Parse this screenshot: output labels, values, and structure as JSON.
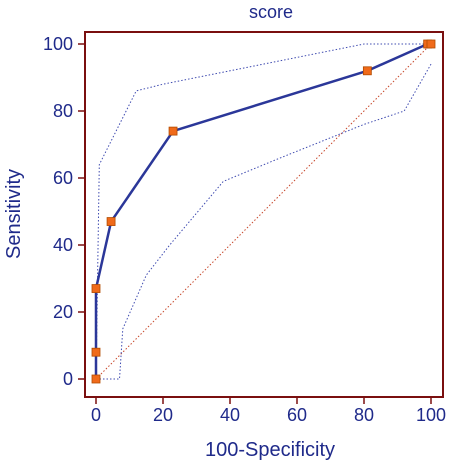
{
  "chart_data": {
    "type": "line",
    "title": "score",
    "xlabel": "100-Specificity",
    "ylabel": "Sensitivity",
    "xlim": [
      0,
      100
    ],
    "ylim": [
      0,
      100
    ],
    "x_ticks": [
      0,
      20,
      40,
      60,
      80,
      100
    ],
    "y_ticks": [
      0,
      20,
      40,
      60,
      80,
      100
    ],
    "x_tick_labels": [
      "0",
      "20",
      "40",
      "60",
      "80",
      "100"
    ],
    "y_tick_labels": [
      "0",
      "20",
      "40",
      "60",
      "80",
      "100"
    ],
    "grid": false,
    "series": [
      {
        "role": "roc-curve",
        "style": "solid",
        "markers": "square",
        "color": "#2b3799",
        "marker_color": "#f06a1a",
        "x": [
          0,
          0,
          0,
          4.5,
          23,
          81,
          99,
          100
        ],
        "y": [
          0,
          8,
          27,
          47,
          74,
          92,
          100,
          100
        ]
      },
      {
        "role": "upper-confidence-bound",
        "style": "dotted",
        "color": "#3f4bb0",
        "x": [
          0,
          1,
          12,
          20,
          40,
          60,
          80,
          100
        ],
        "y": [
          0,
          64,
          86,
          88,
          92,
          96,
          100,
          100
        ]
      },
      {
        "role": "lower-confidence-bound",
        "style": "dotted",
        "color": "#3f4bb0",
        "x": [
          0,
          7,
          8,
          15,
          22,
          38,
          55,
          70,
          80,
          92,
          100
        ],
        "y": [
          0,
          0,
          15,
          31,
          40,
          59,
          66,
          72,
          76,
          80,
          94
        ]
      },
      {
        "role": "reference-diagonal",
        "style": "dotted",
        "color": "#c7472b",
        "x": [
          0,
          100
        ],
        "y": [
          0,
          100
        ]
      }
    ]
  },
  "colors": {
    "frame": "#7a0f0f",
    "axis_text": "#1f2a8a",
    "roc_line": "#2b3799",
    "marker_fill": "#f06a1a",
    "marker_stroke": "#b24b00",
    "ci_line": "#3f4bb0",
    "diagonal": "#c7472b"
  }
}
